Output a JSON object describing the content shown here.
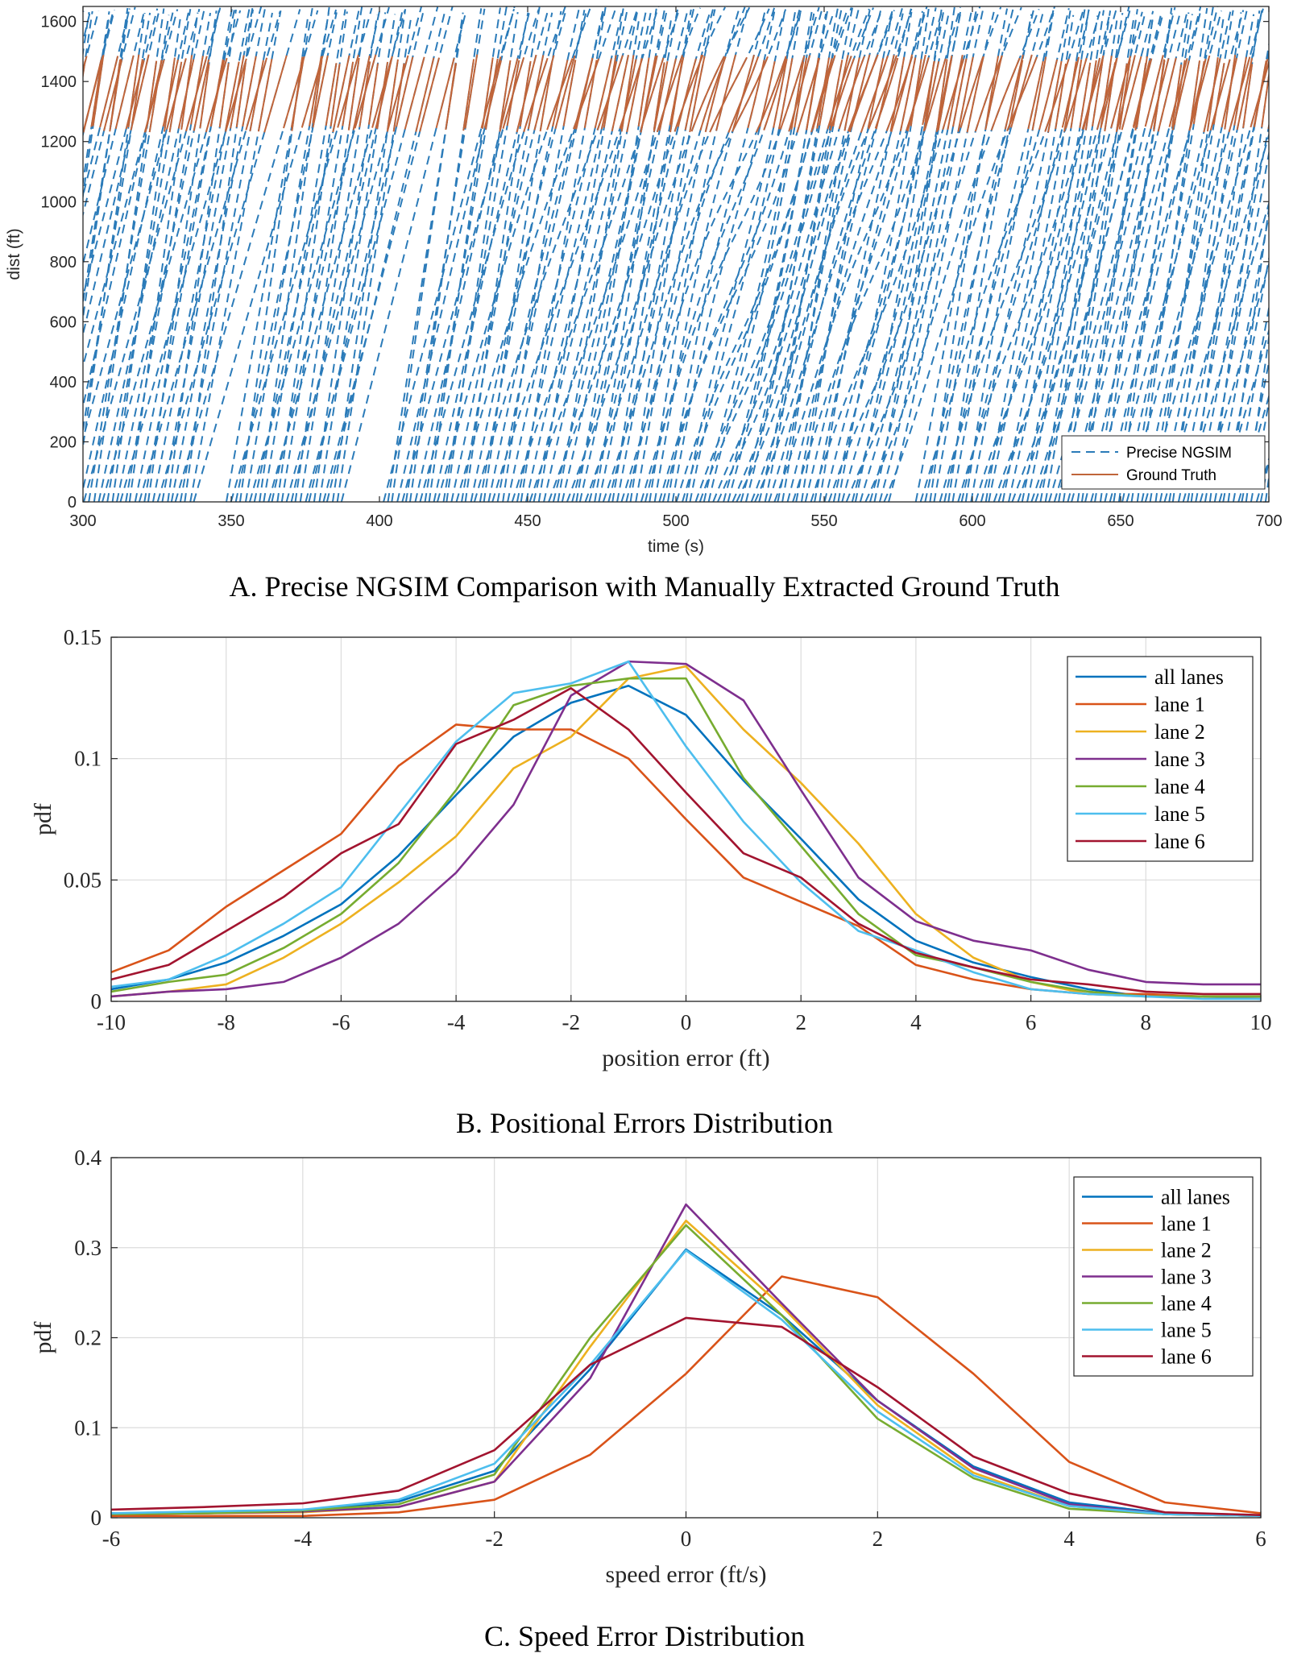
{
  "colors": {
    "all_lanes": "#0072BD",
    "lane1": "#D95319",
    "lane2": "#EDB120",
    "lane3": "#7E2F8E",
    "lane4": "#77AC30",
    "lane5": "#4DBEEE",
    "lane6": "#A2142F",
    "ngsim": "#2b7bb9",
    "truth": "#c0653a",
    "grid": "#dcdcdc"
  },
  "chart_data": [
    {
      "type": "line",
      "caption": "A. Precise NGSIM Comparison with Manually Extracted Ground Truth",
      "xlabel": "time (s)",
      "ylabel": "dist (ft)",
      "xlim": [
        300,
        700
      ],
      "ylim": [
        0,
        1650
      ],
      "xticks": [
        "300",
        "350",
        "400",
        "450",
        "500",
        "550",
        "600",
        "650",
        "700"
      ],
      "yticks": [
        "0",
        "200",
        "400",
        "600",
        "800",
        "1000",
        "1200",
        "1400",
        "1600"
      ],
      "grid": false,
      "legend_position": "bottom-right",
      "series": [
        {
          "name": "Precise NGSIM",
          "style": "dashed",
          "dist_range": [
            0,
            1650
          ]
        },
        {
          "name": "Ground Truth",
          "style": "solid",
          "dist_range": [
            1230,
            1490
          ]
        }
      ]
    },
    {
      "type": "line",
      "caption": "B. Positional Errors Distribution",
      "xlabel": "position error (ft)",
      "ylabel": "pdf",
      "xlim": [
        -10,
        10
      ],
      "ylim": [
        0,
        0.15
      ],
      "xticks": [
        "-10",
        "-8",
        "-6",
        "-4",
        "-2",
        "0",
        "2",
        "4",
        "6",
        "8",
        "10"
      ],
      "yticks": [
        "0",
        "0.05",
        "0.1",
        "0.15"
      ],
      "grid": true,
      "legend_position": "top-right",
      "x": [
        -10,
        -9,
        -8,
        -7,
        -6,
        -5,
        -4,
        -3,
        -2,
        -1,
        0,
        1,
        2,
        3,
        4,
        5,
        6,
        7,
        8,
        9,
        10
      ],
      "series": [
        {
          "name": "all lanes",
          "values": [
            0.005,
            0.009,
            0.016,
            0.027,
            0.04,
            0.06,
            0.085,
            0.109,
            0.123,
            0.13,
            0.118,
            0.091,
            0.067,
            0.042,
            0.025,
            0.016,
            0.01,
            0.005,
            0.002,
            0.002,
            0.001
          ]
        },
        {
          "name": "lane 1",
          "values": [
            0.012,
            0.021,
            0.039,
            0.054,
            0.069,
            0.097,
            0.114,
            0.112,
            0.112,
            0.1,
            0.075,
            0.051,
            0.041,
            0.031,
            0.015,
            0.009,
            0.005,
            0.003,
            0.003,
            0.002,
            0.002
          ]
        },
        {
          "name": "lane 2",
          "values": [
            0.002,
            0.004,
            0.007,
            0.018,
            0.032,
            0.049,
            0.068,
            0.096,
            0.109,
            0.133,
            0.138,
            0.112,
            0.09,
            0.065,
            0.036,
            0.018,
            0.008,
            0.003,
            0.002,
            0.002,
            0.002
          ]
        },
        {
          "name": "lane 3",
          "values": [
            0.002,
            0.004,
            0.005,
            0.008,
            0.018,
            0.032,
            0.053,
            0.081,
            0.126,
            0.14,
            0.139,
            0.124,
            0.087,
            0.051,
            0.033,
            0.025,
            0.021,
            0.013,
            0.008,
            0.007,
            0.007
          ]
        },
        {
          "name": "lane 4",
          "values": [
            0.004,
            0.008,
            0.011,
            0.022,
            0.036,
            0.057,
            0.087,
            0.122,
            0.13,
            0.133,
            0.133,
            0.092,
            0.064,
            0.036,
            0.019,
            0.014,
            0.008,
            0.004,
            0.002,
            0.002,
            0.002
          ]
        },
        {
          "name": "lane 5",
          "values": [
            0.006,
            0.009,
            0.019,
            0.032,
            0.047,
            0.077,
            0.107,
            0.127,
            0.131,
            0.14,
            0.105,
            0.074,
            0.049,
            0.029,
            0.021,
            0.012,
            0.005,
            0.003,
            0.002,
            0.001,
            0.001
          ]
        },
        {
          "name": "lane 6",
          "values": [
            0.009,
            0.015,
            0.029,
            0.043,
            0.061,
            0.073,
            0.106,
            0.116,
            0.129,
            0.112,
            0.086,
            0.061,
            0.051,
            0.032,
            0.02,
            0.014,
            0.009,
            0.007,
            0.004,
            0.003,
            0.003
          ]
        }
      ]
    },
    {
      "type": "line",
      "caption": "C. Speed Error Distribution",
      "xlabel": "speed error (ft/s)",
      "ylabel": "pdf",
      "xlim": [
        -6,
        6
      ],
      "ylim": [
        0,
        0.4
      ],
      "xticks": [
        "-6",
        "-4",
        "-2",
        "0",
        "2",
        "4",
        "6"
      ],
      "yticks": [
        "0",
        "0.1",
        "0.2",
        "0.3",
        "0.4"
      ],
      "grid": true,
      "legend_position": "top-right",
      "x": [
        -6,
        -5,
        -4,
        -3,
        -2,
        -1,
        0,
        1,
        2,
        3,
        4,
        5,
        6
      ],
      "series": [
        {
          "name": "all lanes",
          "values": [
            0.005,
            0.006,
            0.008,
            0.018,
            0.052,
            0.165,
            0.298,
            0.225,
            0.13,
            0.057,
            0.017,
            0.005,
            0.002
          ]
        },
        {
          "name": "lane 1",
          "values": [
            0.002,
            0.002,
            0.002,
            0.006,
            0.02,
            0.07,
            0.16,
            0.268,
            0.245,
            0.16,
            0.062,
            0.017,
            0.005
          ]
        },
        {
          "name": "lane 2",
          "values": [
            0.004,
            0.005,
            0.006,
            0.012,
            0.04,
            0.19,
            0.33,
            0.235,
            0.125,
            0.05,
            0.013,
            0.004,
            0.002
          ]
        },
        {
          "name": "lane 3",
          "values": [
            0.004,
            0.005,
            0.007,
            0.012,
            0.04,
            0.155,
            0.348,
            0.238,
            0.13,
            0.055,
            0.015,
            0.004,
            0.002
          ]
        },
        {
          "name": "lane 4",
          "values": [
            0.004,
            0.005,
            0.008,
            0.015,
            0.048,
            0.2,
            0.325,
            0.225,
            0.11,
            0.044,
            0.01,
            0.004,
            0.002
          ]
        },
        {
          "name": "lane 5",
          "values": [
            0.005,
            0.007,
            0.009,
            0.02,
            0.06,
            0.17,
            0.297,
            0.22,
            0.118,
            0.047,
            0.013,
            0.004,
            0.002
          ]
        },
        {
          "name": "lane 6",
          "values": [
            0.009,
            0.012,
            0.016,
            0.03,
            0.075,
            0.17,
            0.222,
            0.212,
            0.145,
            0.068,
            0.027,
            0.006,
            0.003
          ]
        }
      ]
    }
  ]
}
